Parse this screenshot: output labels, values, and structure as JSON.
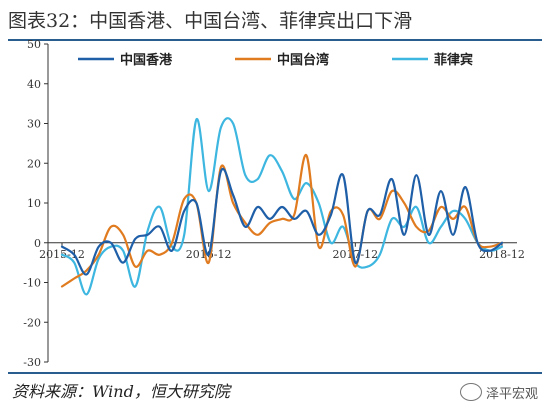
{
  "title": "图表32：中国香港、中国台湾、菲律宾出口下滑",
  "source": "资料来源：Wind，恒大研究院",
  "watermark": "泽平宏观",
  "colors": {
    "hongkong": "#1f5fa8",
    "taiwan": "#e07b20",
    "philippines": "#3db6e0",
    "axis": "#333333",
    "rule": "#2a5d8f"
  },
  "chart_data": {
    "type": "line",
    "title": "",
    "xlabel": "",
    "ylabel": "",
    "ylim": [
      -30,
      50
    ],
    "yticks": [
      -30,
      -20,
      -10,
      0,
      10,
      20,
      30,
      40,
      50
    ],
    "x_ticks": [
      "2015-12",
      "2016-12",
      "2017-12",
      "2018-12"
    ],
    "x_months": [
      "2015-12",
      "2016-01",
      "2016-02",
      "2016-03",
      "2016-04",
      "2016-05",
      "2016-06",
      "2016-07",
      "2016-08",
      "2016-09",
      "2016-10",
      "2016-11",
      "2016-12",
      "2017-01",
      "2017-02",
      "2017-03",
      "2017-04",
      "2017-05",
      "2017-06",
      "2017-07",
      "2017-08",
      "2017-09",
      "2017-10",
      "2017-11",
      "2017-12",
      "2018-01",
      "2018-02",
      "2018-03",
      "2018-04",
      "2018-05",
      "2018-06",
      "2018-07",
      "2018-08",
      "2018-09",
      "2018-10",
      "2018-11",
      "2018-12"
    ],
    "grid": false,
    "legend": "top",
    "series": [
      {
        "name": "中国香港",
        "color_key": "hongkong",
        "values": [
          -1,
          -3,
          -8,
          -1,
          0,
          -5,
          1,
          2,
          4,
          -2,
          8,
          10,
          -3,
          18,
          12,
          4,
          9,
          6,
          9,
          6,
          8,
          2,
          7,
          17,
          -5,
          8,
          7,
          16,
          2,
          17,
          2,
          13,
          2,
          14,
          0,
          -2,
          0
        ]
      },
      {
        "name": "中国台湾",
        "color_key": "taiwan",
        "values": [
          -11,
          -9,
          -7,
          -3,
          4,
          2,
          -6,
          -2,
          -3,
          0,
          11,
          10,
          -5,
          19,
          10,
          5,
          2,
          5,
          6,
          7,
          22,
          -1,
          8,
          7,
          -6,
          8,
          6,
          13,
          10,
          4,
          3,
          9,
          6,
          9,
          0,
          -1,
          0
        ]
      },
      {
        "name": "菲律宾",
        "color_key": "philippines",
        "values": [
          -3,
          -5,
          -13,
          -4,
          -1,
          -2,
          -11,
          3,
          9,
          -1,
          2,
          31,
          13,
          29,
          30,
          17,
          16,
          22,
          18,
          11,
          15,
          10,
          0,
          4,
          -5,
          -6,
          -3,
          6,
          4,
          9,
          0,
          4,
          8,
          6,
          0,
          -2,
          -1
        ]
      }
    ]
  }
}
